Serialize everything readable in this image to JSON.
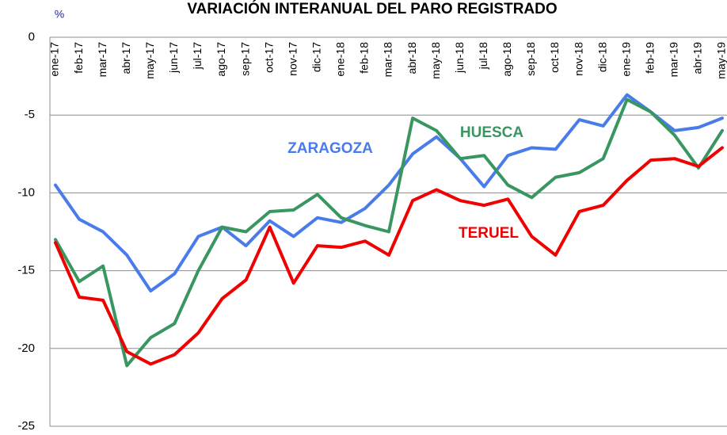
{
  "chart_data": {
    "type": "line",
    "title": "VARIACIÓN INTERANUAL DEL PARO REGISTRADO",
    "y_label": "%",
    "categories": [
      "ene-17",
      "feb-17",
      "mar-17",
      "abr-17",
      "may-17",
      "jun-17",
      "jul-17",
      "ago-17",
      "sep-17",
      "oct-17",
      "nov-17",
      "dic-17",
      "ene-18",
      "feb-18",
      "mar-18",
      "abr-18",
      "may-18",
      "jun-18",
      "jul-18",
      "ago-18",
      "sep-18",
      "oct-18",
      "nov-18",
      "dic-18",
      "ene-19",
      "feb-19",
      "mar-19",
      "abr-19",
      "may-19"
    ],
    "series": [
      {
        "name": "ZARAGOZA",
        "color": "#4a7bea",
        "values": [
          -9.5,
          -11.7,
          -12.5,
          -14.0,
          -16.3,
          -15.2,
          -12.8,
          -12.2,
          -13.4,
          -11.8,
          -12.8,
          -11.6,
          -11.9,
          -11.0,
          -9.5,
          -7.5,
          -6.4,
          -7.8,
          -9.6,
          -7.6,
          -7.1,
          -7.2,
          -5.3,
          -5.7,
          -3.7,
          -4.8,
          -6.0,
          -5.8,
          -5.2
        ]
      },
      {
        "name": "HUESCA",
        "color": "#3a9660",
        "values": [
          -13.0,
          -15.7,
          -14.7,
          -21.1,
          -19.3,
          -18.4,
          -15.0,
          -12.2,
          -12.5,
          -11.2,
          -11.1,
          -10.1,
          -11.6,
          -12.1,
          -12.5,
          -5.2,
          -6.0,
          -7.8,
          -7.6,
          -9.5,
          -10.3,
          -9.0,
          -8.7,
          -7.8,
          -4.0,
          -4.8,
          -6.3,
          -8.4,
          -6.0
        ]
      },
      {
        "name": "TERUEL",
        "color": "#f00000",
        "values": [
          -13.2,
          -16.7,
          -16.9,
          -20.2,
          -21.0,
          -20.4,
          -19.0,
          -16.8,
          -15.6,
          -12.2,
          -15.8,
          -13.4,
          -13.5,
          -13.1,
          -14.0,
          -10.5,
          -9.8,
          -10.5,
          -10.8,
          -10.4,
          -12.8,
          -14.0,
          -11.2,
          -10.8,
          -9.2,
          -7.9,
          -7.8,
          -8.3,
          -7.1
        ]
      }
    ],
    "ylim": [
      -25,
      0
    ],
    "yticks": [
      0,
      -5,
      -10,
      -15,
      -20,
      -25
    ],
    "grid": true
  }
}
